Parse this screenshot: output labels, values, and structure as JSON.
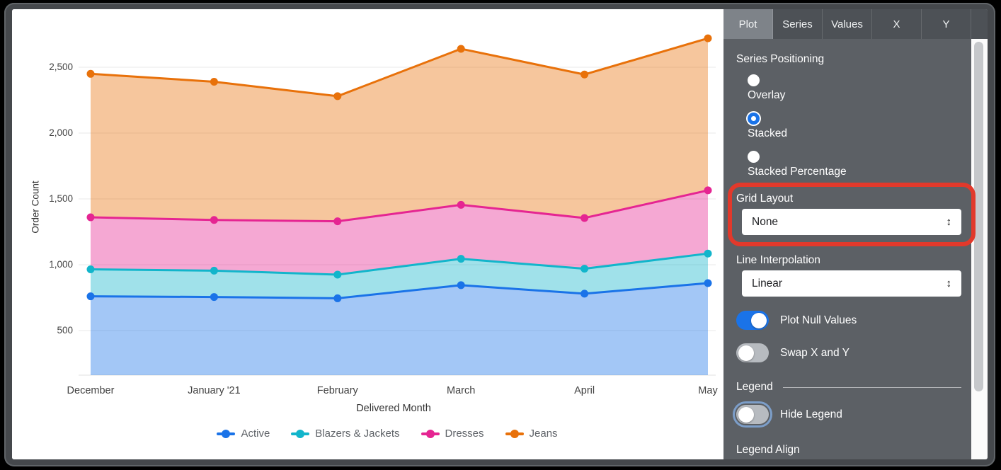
{
  "chart": {
    "y_axis_title": "Order Count",
    "x_axis_title": "Delivered Month"
  },
  "chart_data": {
    "type": "area",
    "stacked": true,
    "title": "",
    "xlabel": "Delivered Month",
    "ylabel": "Order Count",
    "x": [
      "December",
      "January '21",
      "February",
      "March",
      "April",
      "May"
    ],
    "series": [
      {
        "name": "Active",
        "color": "#1A73E8",
        "values": [
          760,
          755,
          745,
          845,
          780,
          860
        ]
      },
      {
        "name": "Blazers & Jackets",
        "color": "#12B5CB",
        "values": [
          205,
          200,
          180,
          200,
          190,
          225
        ]
      },
      {
        "name": "Dresses",
        "color": "#E52592",
        "values": [
          395,
          385,
          405,
          410,
          385,
          480
        ]
      },
      {
        "name": "Jeans",
        "color": "#E8710A",
        "values": [
          1090,
          1050,
          950,
          1185,
          1090,
          1155
        ]
      }
    ],
    "stacked_totals": {
      "active_top": [
        760,
        755,
        745,
        845,
        780,
        860
      ],
      "blazers_top": [
        965,
        955,
        925,
        1045,
        970,
        1085
      ],
      "dresses_top": [
        1360,
        1340,
        1330,
        1455,
        1355,
        1565
      ],
      "jeans_top": [
        2450,
        2390,
        2280,
        2640,
        2445,
        2720
      ]
    },
    "y_ticks": [
      500,
      1000,
      1500,
      2000,
      2500
    ],
    "y_tick_labels": [
      "500",
      "1,000",
      "1,500",
      "2,000",
      "2,500"
    ],
    "grid": "horizontal",
    "legend_position": "bottom"
  },
  "panel": {
    "tabs": [
      {
        "label": "Plot",
        "selected": true
      },
      {
        "label": "Series",
        "selected": false
      },
      {
        "label": "Values",
        "selected": false
      },
      {
        "label": "X",
        "selected": false
      },
      {
        "label": "Y",
        "selected": false
      }
    ],
    "series_positioning": {
      "label": "Series Positioning",
      "options": [
        {
          "label": "Overlay",
          "selected": false
        },
        {
          "label": "Stacked",
          "selected": true
        },
        {
          "label": "Stacked Percentage",
          "selected": false
        }
      ]
    },
    "grid_layout": {
      "label": "Grid Layout",
      "value": "None",
      "arrows": "↕"
    },
    "line_interpolation": {
      "label": "Line Interpolation",
      "value": "Linear",
      "arrows": "↕"
    },
    "plot_null_values": {
      "label": "Plot Null Values",
      "on": true,
      "focused": false
    },
    "swap_x_y": {
      "label": "Swap X and Y",
      "on": false,
      "focused": false
    },
    "legend_section": {
      "label": "Legend"
    },
    "hide_legend": {
      "label": "Hide Legend",
      "on": false,
      "focused": true
    },
    "legend_align": {
      "label": "Legend Align"
    }
  },
  "annotation": {
    "shape": "rounded-rect",
    "color": "#E2392B",
    "target": "grid-layout-section"
  },
  "colors": {
    "panel_bg": "#5C6065",
    "tabbar_bg": "#4D5156",
    "tab_selected_bg": "#7E8389",
    "toggle_on": "#1A73E8",
    "toggle_off": "#B7BBC0",
    "radio_selected": "#1A73E8"
  }
}
